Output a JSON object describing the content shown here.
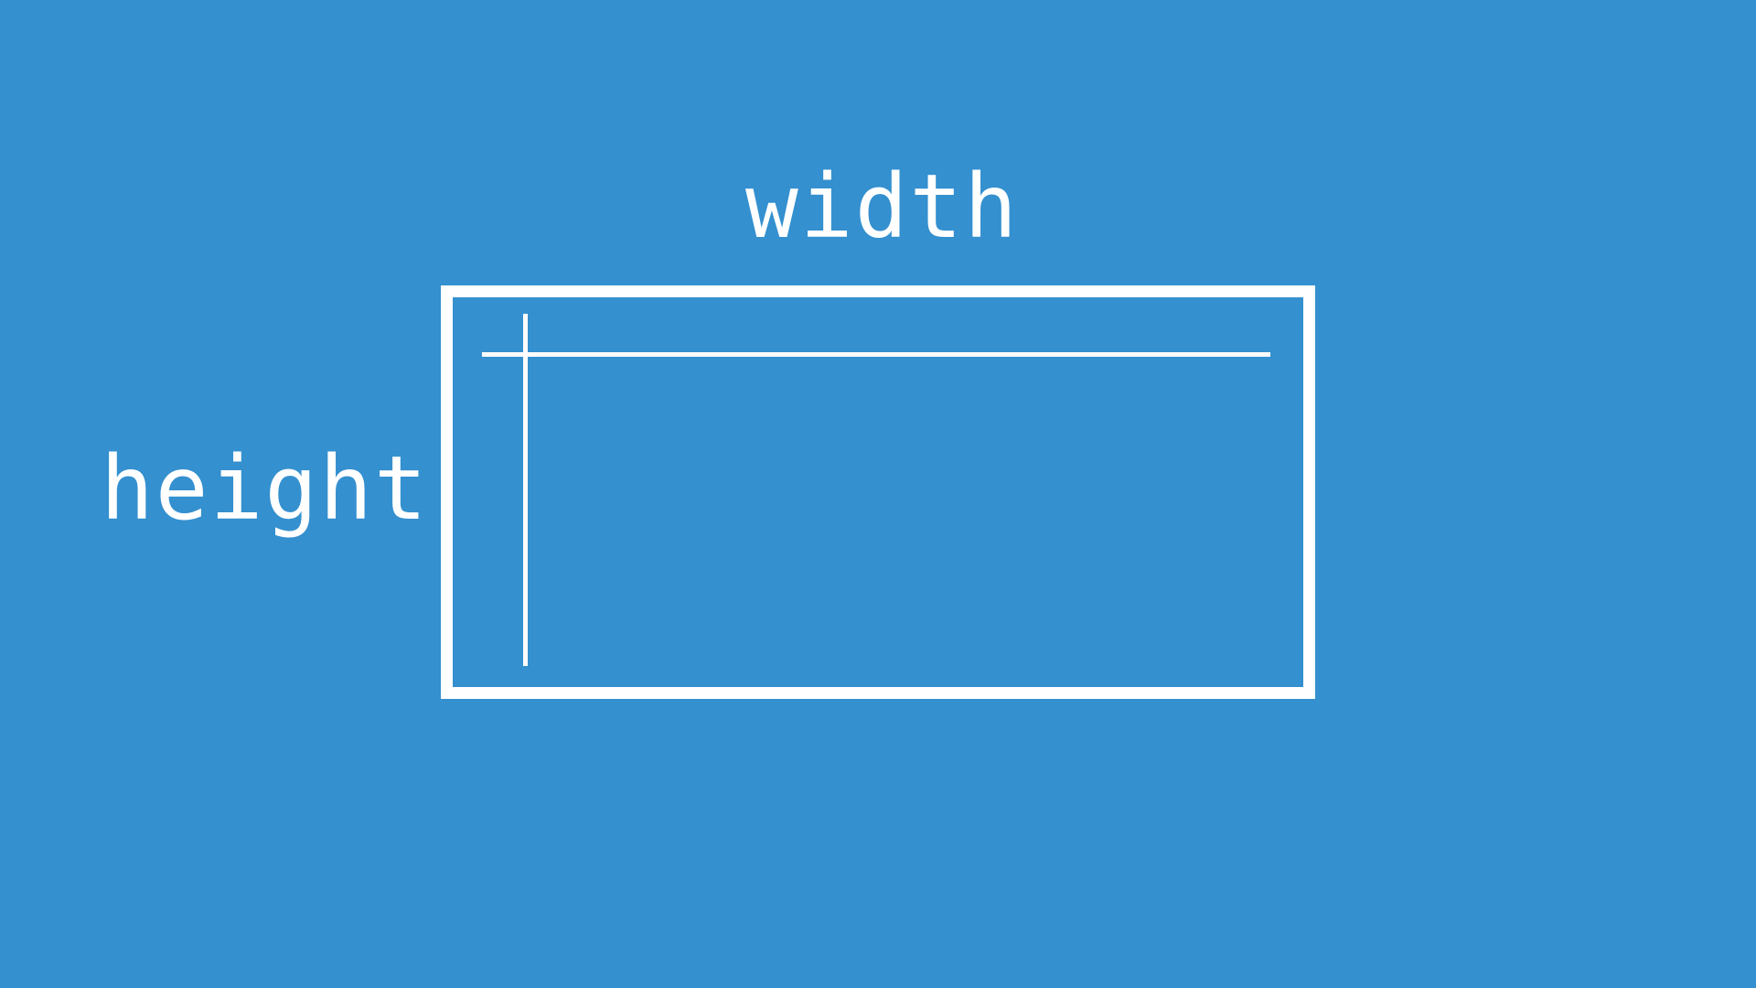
{
  "colors": {
    "background": "#3490CF",
    "foreground": "#FFFFFF"
  },
  "labels": {
    "width": "width",
    "height": "height"
  }
}
